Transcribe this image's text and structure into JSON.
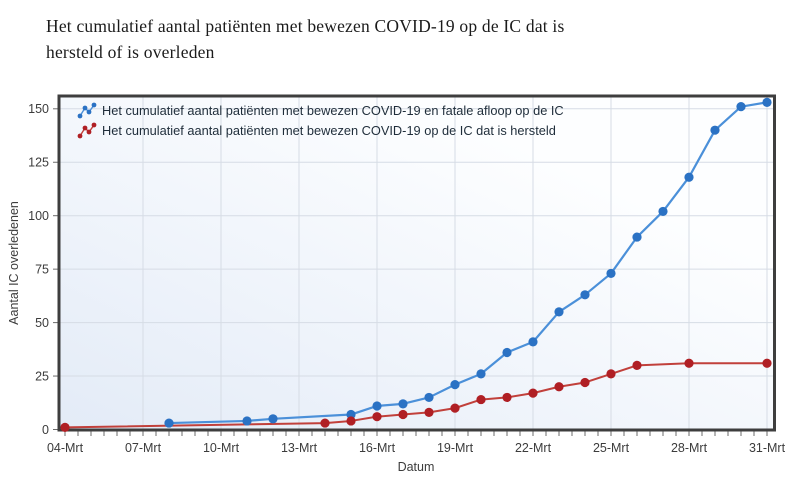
{
  "title_lines": [
    "Het cumulatief aantal patiënten met bewezen COVID-19 op de IC dat is",
    "hersteld of is overleden"
  ],
  "chart_data": {
    "type": "line",
    "title": "Het cumulatief aantal patiënten met bewezen COVID-19 op de IC dat is hersteld of is overleden",
    "xlabel": "Datum",
    "ylabel": "Aantal IC overledenen",
    "ylim": [
      0,
      156
    ],
    "x_range_days": [
      4,
      31
    ],
    "x_tick_labels": [
      "04-Mrt",
      "07-Mrt",
      "10-Mrt",
      "13-Mrt",
      "16-Mrt",
      "19-Mrt",
      "22-Mrt",
      "25-Mrt",
      "28-Mrt",
      "31-Mrt"
    ],
    "x_tick_days": [
      4,
      7,
      10,
      13,
      16,
      19,
      22,
      25,
      28,
      31
    ],
    "y_tick_values": [
      0,
      25,
      50,
      75,
      100,
      125,
      150
    ],
    "grid": true,
    "legend_position": "top-left-inside",
    "series": [
      {
        "name": "Het cumulatief aantal patiënten met bewezen COVID-19 en fatale afloop op de IC",
        "marker_color": "#2b72c4",
        "line_color": "#4b90d9",
        "points": [
          {
            "date": "08-Mrt",
            "value": 3
          },
          {
            "date": "11-Mrt",
            "value": 4
          },
          {
            "date": "12-Mrt",
            "value": 5
          },
          {
            "date": "15-Mrt",
            "value": 7
          },
          {
            "date": "16-Mrt",
            "value": 11
          },
          {
            "date": "17-Mrt",
            "value": 12
          },
          {
            "date": "18-Mrt",
            "value": 15
          },
          {
            "date": "19-Mrt",
            "value": 21
          },
          {
            "date": "20-Mrt",
            "value": 26
          },
          {
            "date": "21-Mrt",
            "value": 36
          },
          {
            "date": "22-Mrt",
            "value": 41
          },
          {
            "date": "23-Mrt",
            "value": 55
          },
          {
            "date": "24-Mrt",
            "value": 63
          },
          {
            "date": "25-Mrt",
            "value": 73
          },
          {
            "date": "26-Mrt",
            "value": 90
          },
          {
            "date": "27-Mrt",
            "value": 102
          },
          {
            "date": "28-Mrt",
            "value": 118
          },
          {
            "date": "29-Mrt",
            "value": 140
          },
          {
            "date": "30-Mrt",
            "value": 151
          },
          {
            "date": "31-Mrt",
            "value": 153
          }
        ]
      },
      {
        "name": "Het cumulatief aantal patiënten met bewezen COVID-19 op de IC dat is hersteld",
        "marker_color": "#b01f24",
        "line_color": "#c1403b",
        "points": [
          {
            "date": "04-Mrt",
            "value": 1
          },
          {
            "date": "14-Mrt",
            "value": 3
          },
          {
            "date": "15-Mrt",
            "value": 4
          },
          {
            "date": "16-Mrt",
            "value": 6
          },
          {
            "date": "17-Mrt",
            "value": 7
          },
          {
            "date": "18-Mrt",
            "value": 8
          },
          {
            "date": "19-Mrt",
            "value": 10
          },
          {
            "date": "20-Mrt",
            "value": 14
          },
          {
            "date": "21-Mrt",
            "value": 15
          },
          {
            "date": "22-Mrt",
            "value": 17
          },
          {
            "date": "23-Mrt",
            "value": 20
          },
          {
            "date": "24-Mrt",
            "value": 22
          },
          {
            "date": "25-Mrt",
            "value": 26
          },
          {
            "date": "26-Mrt",
            "value": 30
          },
          {
            "date": "28-Mrt",
            "value": 31
          },
          {
            "date": "31-Mrt",
            "value": 31
          }
        ]
      }
    ],
    "colors": {
      "frame": "#3e3e3e",
      "grid": "#d6dce5",
      "tick": "#6b6b6b",
      "tick_label": "#3c3c3c",
      "axis_title": "#3c3c3c",
      "legend_text": "#1f2d3a",
      "plot_bg_from": "#e3ebf7",
      "plot_bg_to": "#fdfeff"
    }
  }
}
